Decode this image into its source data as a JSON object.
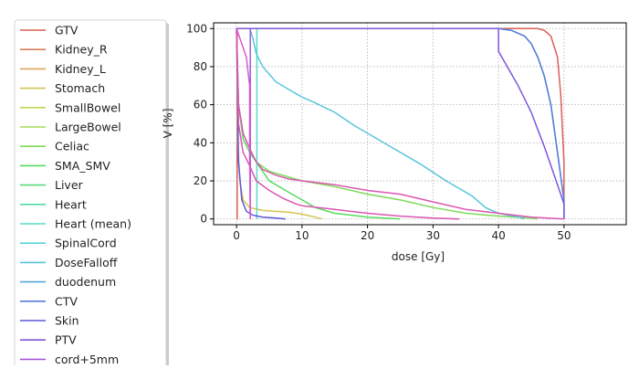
{
  "chart_data": {
    "type": "line",
    "xlabel": "dose [Gy]",
    "ylabel": "V [%]",
    "xlim": [
      -3.5,
      59.5
    ],
    "ylim": [
      -3,
      103
    ],
    "xticks": [
      0,
      10,
      20,
      30,
      40,
      50
    ],
    "yticks": [
      0,
      20,
      40,
      60,
      80,
      100
    ],
    "grid": "on (dotted)",
    "legend_placement": "left, outside plot",
    "series": [
      {
        "name": "GTV",
        "color": "#db5f57",
        "x": [
          0.0,
          0.1,
          0.1,
          46.0,
          47.0,
          48.0,
          49.0,
          49.5,
          50.0,
          50.0
        ],
        "y": [
          0,
          0,
          100,
          100,
          99,
          96,
          85,
          65,
          30,
          0
        ]
      },
      {
        "name": "Kidney_R",
        "color": "#db7c57",
        "x": [],
        "y": []
      },
      {
        "name": "Kidney_L",
        "color": "#dba457",
        "x": [],
        "y": []
      },
      {
        "name": "Stomach",
        "color": "#d3c451",
        "x": [
          0.0,
          0.2,
          0.5,
          1.0,
          2.0,
          4.0,
          6.0,
          8.0,
          10.0,
          12.0,
          13.0
        ],
        "y": [
          100,
          40,
          20,
          10,
          6,
          4.5,
          4,
          3.5,
          2.5,
          1,
          0
        ]
      },
      {
        "name": "SmallBowel",
        "color": "#c3d451",
        "x": [],
        "y": []
      },
      {
        "name": "LargeBowel",
        "color": "#a4db57",
        "x": [],
        "y": []
      },
      {
        "name": "Celiac",
        "color": "#7cdb57",
        "x": [
          0.0,
          0.3,
          1.0,
          2.0,
          3.0,
          5.0,
          8.0,
          10.0,
          15.0,
          20.0,
          25.0,
          30.0,
          35.0,
          40.0,
          45.0,
          46.0
        ],
        "y": [
          100,
          60,
          45,
          37,
          30,
          25,
          22,
          20,
          17,
          13,
          10,
          6,
          3,
          1.5,
          0.5,
          0
        ]
      },
      {
        "name": "SMA_SMV",
        "color": "#57db5f",
        "x": [
          0.0,
          0.3,
          1.0,
          2.0,
          3.0,
          5.0,
          8.0,
          10.0,
          12.0,
          15.0,
          20.0,
          25.0
        ],
        "y": [
          100,
          60,
          42,
          35,
          30,
          20,
          14,
          10,
          6,
          3,
          1,
          0
        ]
      },
      {
        "name": "Liver",
        "color": "#57db7c",
        "x": [],
        "y": []
      },
      {
        "name": "Heart",
        "color": "#57dba4",
        "x": [],
        "y": []
      },
      {
        "name": "Heart (mean)",
        "color": "#57dbc3",
        "x": [
          3.1,
          3.1
        ],
        "y": [
          0,
          100
        ]
      },
      {
        "name": "SpinalCord",
        "color": "#57d3db",
        "x": [],
        "y": []
      },
      {
        "name": "DoseFalloff",
        "color": "#57c6db",
        "x": [
          2.0,
          2.5,
          3.0,
          4.0,
          5.0,
          6.0,
          8.0,
          10.0,
          12.0,
          15.0,
          18.0,
          20.0,
          24.0,
          28.0,
          32.0,
          36.0,
          38.0,
          40.0,
          43.0,
          44.0
        ],
        "y": [
          100,
          95,
          87,
          80,
          76,
          72,
          68,
          64,
          61,
          56,
          49,
          45,
          37,
          29,
          20,
          12,
          6,
          3,
          1,
          0
        ]
      },
      {
        "name": "duodenum",
        "color": "#57a4db",
        "x": [
          40.0,
          42.0,
          44.0,
          45.0,
          46.0,
          47.0,
          48.0,
          49.0,
          50.0,
          50.0
        ],
        "y": [
          100,
          99,
          96,
          92,
          85,
          75,
          60,
          35,
          10,
          0
        ]
      },
      {
        "name": "CTV",
        "color": "#577cdb",
        "x": [
          40.0,
          40.0,
          42.0,
          44.0,
          45.0,
          46.0,
          47.0,
          48.0,
          49.0,
          50.0,
          50.0
        ],
        "y": [
          100,
          100,
          99,
          96,
          92,
          85,
          75,
          60,
          35,
          10,
          0
        ]
      },
      {
        "name": "Skin",
        "color": "#5f57db",
        "x": [
          0.0,
          0.3,
          0.8,
          1.5,
          2.5,
          4.0,
          6.0,
          7.5
        ],
        "y": [
          100,
          30,
          10,
          4,
          2,
          1,
          0.5,
          0
        ]
      },
      {
        "name": "PTV",
        "color": "#7c57db",
        "x": [
          0.0,
          39.9,
          39.9,
          40.0,
          40.0,
          41.0,
          42.0,
          43.0,
          44.0,
          45.0,
          46.0,
          47.0,
          48.0,
          49.0,
          50.0,
          50.0
        ],
        "y": [
          100,
          100,
          100,
          100,
          88,
          82,
          76,
          70,
          63,
          56,
          47,
          38,
          28,
          18,
          8,
          0
        ]
      },
      {
        "name": "cord+5mm",
        "color": "#a457db",
        "x": [
          2.1,
          2.1
        ],
        "y": [
          0,
          100
        ]
      },
      {
        "name": "",
        "color": "#db57b2",
        "x": [
          0.0,
          0.3,
          1.0,
          2.0,
          3.0,
          4.0,
          6.0,
          8.0,
          10.0,
          15.0,
          20.0,
          25.0,
          30.0,
          35.0,
          40.0,
          45.0,
          50.0
        ],
        "y": [
          100,
          60,
          45,
          37,
          30,
          26,
          23,
          21,
          20,
          18,
          15,
          13,
          9,
          5,
          3,
          1,
          0
        ]
      },
      {
        "name": "",
        "color": "#d957b0",
        "x": [
          0.0,
          0.3,
          1.0,
          2.0,
          3.0,
          5.0,
          7.0,
          9.0,
          10.0,
          15.0,
          20.0,
          25.0,
          30.0,
          34.0
        ],
        "y": [
          100,
          50,
          35,
          28,
          20,
          15,
          11,
          8,
          7,
          5,
          3,
          1.5,
          0.5,
          0
        ]
      },
      {
        "name": "",
        "color": "#db57d3",
        "x": [
          0.0,
          0.5,
          1.5,
          2.0,
          2.0,
          2.1
        ],
        "y": [
          100,
          95,
          85,
          70,
          30,
          0
        ]
      }
    ]
  }
}
